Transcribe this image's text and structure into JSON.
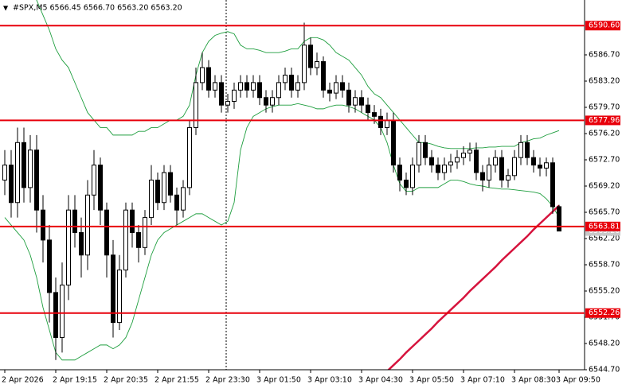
{
  "chart_data": {
    "type": "candlestick",
    "title": "#SPX,M5  6566.45 6566.70 6563.20 6563.20",
    "ylim": [
      6544.7,
      6593.7
    ],
    "yticks": [
      {
        "value": 6586.7,
        "label": "6586.70"
      },
      {
        "value": 6583.2,
        "label": "6583.20"
      },
      {
        "value": 6579.7,
        "label": "6579.70"
      },
      {
        "value": 6576.2,
        "label": "6576.20"
      },
      {
        "value": 6572.7,
        "label": "6572.70"
      },
      {
        "value": 6569.2,
        "label": "6569.20"
      },
      {
        "value": 6565.7,
        "label": "6565.70"
      },
      {
        "value": 6562.2,
        "label": "6562.20"
      },
      {
        "value": 6558.7,
        "label": "6558.70"
      },
      {
        "value": 6555.2,
        "label": "6555.20"
      },
      {
        "value": 6551.7,
        "label": "6551.70"
      },
      {
        "value": 6548.2,
        "label": "6548.20"
      },
      {
        "value": 6544.7,
        "label": "6544.70"
      }
    ],
    "time_labels": [
      {
        "index": 0,
        "label": "2 Apr 2026"
      },
      {
        "index": 8,
        "label": "2 Apr 19:15"
      },
      {
        "index": 16,
        "label": "2 Apr 20:35"
      },
      {
        "index": 24,
        "label": "2 Apr 21:55"
      },
      {
        "index": 32,
        "label": "2 Apr 23:30"
      },
      {
        "index": 40,
        "label": "3 Apr 01:50"
      },
      {
        "index": 48,
        "label": "3 Apr 03:10"
      },
      {
        "index": 56,
        "label": "3 Apr 04:30"
      },
      {
        "index": 64,
        "label": "3 Apr 05:50"
      },
      {
        "index": 72,
        "label": "3 Apr 07:10"
      },
      {
        "index": 80,
        "label": "3 Apr 08:30"
      },
      {
        "index": 87,
        "label": "3 Apr 09:50"
      }
    ],
    "levels": [
      {
        "value": 6590.6,
        "label": "6590.60"
      },
      {
        "value": 6577.96,
        "label": "6577.96"
      },
      {
        "value": 6563.81,
        "label": "6563.81"
      },
      {
        "value": 6552.26,
        "label": "6552.26"
      }
    ],
    "level_color": "#e8000b",
    "current_price": {
      "value": 6563.2,
      "label": "6563.20"
    },
    "open": [
      6570,
      6572,
      6567,
      6575,
      6569,
      6574,
      6566,
      6562,
      6555,
      6549,
      6556,
      6566,
      6563,
      6560,
      6568,
      6572,
      6566,
      6560,
      6551,
      6558,
      6566,
      6563,
      6561,
      6565,
      6570,
      6567,
      6571,
      6568,
      6566,
      6569,
      6577,
      6583,
      6585,
      6582,
      6583,
      6580,
      6580.5,
      6582,
      6583,
      6582,
      6583,
      6581,
      6580,
      6581,
      6583,
      6584,
      6582,
      6583,
      6588,
      6585,
      6585.8,
      6582,
      6581.6,
      6583,
      6582,
      6580,
      6581,
      6580,
      6579,
      6578.5,
      6577,
      6578,
      6572,
      6570,
      6569,
      6572,
      6575,
      6573,
      6572,
      6571,
      6572,
      6572.4,
      6573,
      6573.6,
      6574,
      6571,
      6570,
      6572,
      6573,
      6570,
      6570.6,
      6573,
      6575,
      6573,
      6572,
      6571.6,
      6572.3,
      6566.45
    ],
    "high": [
      6574,
      6574,
      6577,
      6577,
      6576,
      6576,
      6568,
      6564,
      6557,
      6559,
      6568,
      6568,
      6565,
      6570,
      6574,
      6573,
      6567,
      6562,
      6560,
      6567,
      6567,
      6564,
      6566,
      6572,
      6571,
      6572,
      6572,
      6569,
      6570,
      6578,
      6585,
      6587,
      6586,
      6584,
      6584,
      6581.5,
      6583,
      6584,
      6584,
      6584,
      6584,
      6582,
      6582,
      6584,
      6585,
      6585,
      6584,
      6591,
      6589,
      6587,
      6586.5,
      6583,
      6584,
      6584,
      6583,
      6582,
      6582,
      6581,
      6580,
      6579.5,
      6579,
      6579,
      6573,
      6571,
      6573,
      6576,
      6576,
      6574,
      6573,
      6573,
      6573.5,
      6574,
      6574.5,
      6575,
      6575,
      6572,
      6573,
      6574,
      6574,
      6571.5,
      6574,
      6576,
      6576,
      6574,
      6573,
      6573,
      6573,
      6566.7
    ],
    "low": [
      6568,
      6565,
      6565,
      6567,
      6567,
      6563,
      6559,
      6551,
      6546,
      6547,
      6554,
      6561,
      6557,
      6558,
      6566,
      6564,
      6557,
      6549,
      6550,
      6557,
      6561,
      6559,
      6560,
      6564,
      6566,
      6566,
      6567,
      6564,
      6565,
      6568,
      6576,
      6582,
      6581,
      6581,
      6579,
      6579,
      6579.5,
      6581,
      6581,
      6581,
      6580,
      6579,
      6579,
      6580,
      6582,
      6581,
      6581,
      6582,
      6584,
      6584,
      6581,
      6580.5,
      6580.8,
      6581,
      6579,
      6579,
      6579,
      6578,
      6577.5,
      6576,
      6576,
      6571,
      6568.5,
      6568,
      6568,
      6571,
      6572,
      6571,
      6570,
      6570,
      6571,
      6571.5,
      6572,
      6572.5,
      6570,
      6568.5,
      6569,
      6571,
      6569,
      6569,
      6570,
      6572,
      6572,
      6571,
      6570.5,
      6570.5,
      6565.5,
      6563.2
    ],
    "close": [
      6572,
      6567,
      6575,
      6569,
      6574,
      6566,
      6562,
      6555,
      6549,
      6556,
      6566,
      6563,
      6560,
      6568,
      6572,
      6566,
      6560,
      6551,
      6558,
      6566,
      6563,
      6561,
      6565,
      6570,
      6567,
      6571,
      6568,
      6566,
      6569,
      6577,
      6583,
      6585,
      6582,
      6583,
      6580,
      6580.5,
      6582,
      6583,
      6582,
      6583,
      6581,
      6580,
      6581,
      6583,
      6584,
      6582,
      6583,
      6588,
      6585,
      6585.8,
      6582,
      6581.6,
      6583,
      6582,
      6580,
      6581,
      6580,
      6579,
      6578.5,
      6577,
      6578,
      6572,
      6570,
      6569,
      6572,
      6575,
      6573,
      6572,
      6571,
      6572,
      6572.4,
      6573,
      6573.6,
      6574,
      6571,
      6570,
      6572,
      6573,
      6570,
      6570.6,
      6573,
      6575,
      6573,
      6572,
      6571.6,
      6572.3,
      6566.45,
      6563.2
    ],
    "bands": {
      "color": "#1e9e3e",
      "upper": [
        6597,
        6597,
        6596,
        6596,
        6595,
        6594,
        6592,
        6590,
        6587.5,
        6586,
        6585,
        6583,
        6581,
        6579,
        6578,
        6577,
        6577,
        6576,
        6576,
        6576,
        6576,
        6576.5,
        6576.5,
        6577,
        6577,
        6577.5,
        6578,
        6578,
        6578.5,
        6580,
        6584,
        6587,
        6588.5,
        6589.3,
        6589.6,
        6589.8,
        6589.5,
        6588,
        6587.5,
        6587.5,
        6587.3,
        6587,
        6587,
        6587,
        6587.2,
        6587.5,
        6587.5,
        6588.5,
        6589,
        6589,
        6588.7,
        6588,
        6587,
        6586.5,
        6586,
        6585,
        6584,
        6582.5,
        6581.5,
        6581,
        6580,
        6579,
        6578,
        6577,
        6576,
        6575,
        6575,
        6574.8,
        6574.5,
        6574.3,
        6574.2,
        6574.2,
        6574.2,
        6574.2,
        6574.3,
        6574.3,
        6574.4,
        6574.4,
        6574.5,
        6574.5,
        6574.5,
        6575,
        6575.2,
        6575.5,
        6575.6,
        6576,
        6576.3,
        6576.6
      ],
      "lower": [
        6565,
        6564,
        6563,
        6562,
        6560,
        6557,
        6553,
        6550,
        6547,
        6546,
        6546,
        6546,
        6546.5,
        6547,
        6547.5,
        6548,
        6548,
        6547.5,
        6548,
        6549,
        6551,
        6554,
        6557,
        6560,
        6562,
        6563,
        6563.5,
        6564,
        6564.5,
        6565,
        6565.5,
        6565.5,
        6565,
        6564.5,
        6564,
        6564.5,
        6567,
        6574,
        6577,
        6578.5,
        6579,
        6579.5,
        6579.8,
        6580,
        6580,
        6580,
        6580.2,
        6580,
        6579.8,
        6579.5,
        6579.5,
        6579.8,
        6580,
        6580,
        6579.8,
        6579.5,
        6579,
        6578.5,
        6578,
        6577,
        6575,
        6572,
        6569.5,
        6568.5,
        6568.5,
        6569,
        6569,
        6569,
        6569,
        6569.5,
        6570,
        6570,
        6569.8,
        6569.5,
        6569.3,
        6569.2,
        6569,
        6568.9,
        6568.8,
        6568.8,
        6568.7,
        6568.6,
        6568.5,
        6568.4,
        6568.2,
        6567.5,
        6566.5,
        6565
      ]
    },
    "moving_average": {
      "color": "#d6133d",
      "values": [
        null,
        null,
        null,
        null,
        null,
        null,
        null,
        null,
        null,
        null,
        null,
        null,
        null,
        null,
        null,
        null,
        null,
        null,
        null,
        null,
        null,
        null,
        null,
        null,
        null,
        null,
        null,
        null,
        null,
        null,
        null,
        null,
        null,
        null,
        null,
        null,
        null,
        null,
        null,
        null,
        null,
        null,
        null,
        null,
        null,
        null,
        null,
        null,
        null,
        null,
        null,
        null,
        null,
        null,
        null,
        null,
        null,
        null,
        null,
        null,
        6544.5,
        6545.3,
        6546.1,
        6547.0,
        6547.8,
        6548.6,
        6549.4,
        6550.2,
        6551.1,
        6551.9,
        6552.7,
        6553.5,
        6554.3,
        6555.2,
        6556.0,
        6556.8,
        6557.6,
        6558.4,
        6559.3,
        6560.1,
        6560.9,
        6561.7,
        6562.5,
        6563.4,
        6564.2,
        6565.0,
        6565.8,
        6566.6
      ]
    }
  }
}
